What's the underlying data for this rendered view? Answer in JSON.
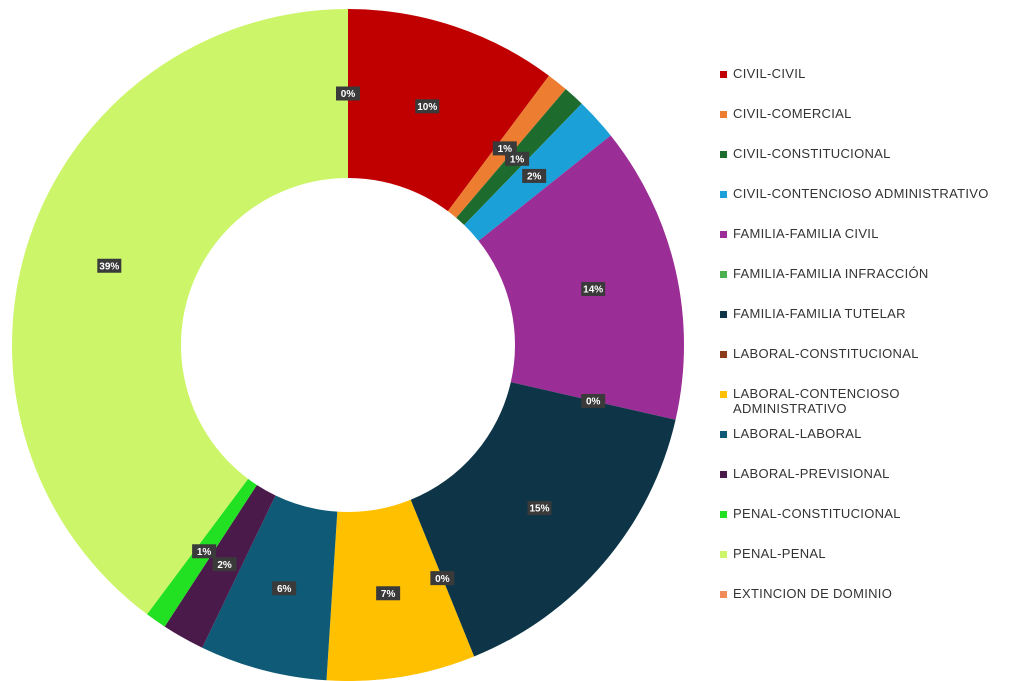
{
  "chart_data": {
    "type": "donut",
    "categories": [
      "CIVIL-CIVIL",
      "CIVIL-COMERCIAL",
      "CIVIL-CONSTITUCIONAL",
      "CIVIL-CONTENCIOSO ADMINISTRATIVO",
      "FAMILIA-FAMILIA CIVIL",
      "FAMILIA-FAMILIA INFRACCIÓN",
      "FAMILIA-FAMILIA TUTELAR",
      "LABORAL-CONSTITUCIONAL",
      "LABORAL-CONTENCIOSO ADMINISTRATIVO",
      "LABORAL-LABORAL",
      "LABORAL-PREVISIONAL",
      "PENAL-CONSTITUCIONAL",
      "PENAL-PENAL",
      "EXTINCION DE DOMINIO"
    ],
    "values": [
      10,
      1,
      1,
      2,
      14,
      0,
      15,
      0,
      7,
      6,
      2,
      1,
      39,
      0
    ],
    "value_labels": [
      "10%",
      "1%",
      "1%",
      "2%",
      "14%",
      "0%",
      "15%",
      "0%",
      "7%",
      "6%",
      "2%",
      "1%",
      "39%",
      "0%"
    ],
    "colors": [
      "#c00000",
      "#ed7d31",
      "#1e6b2e",
      "#1ba1d8",
      "#9b2d96",
      "#4caf50",
      "#0d3547",
      "#8b3a1a",
      "#ffc000",
      "#0e5a77",
      "#4a1a4a",
      "#22e022",
      "#ccf56a",
      "#f08c5a"
    ],
    "legend": "right"
  }
}
